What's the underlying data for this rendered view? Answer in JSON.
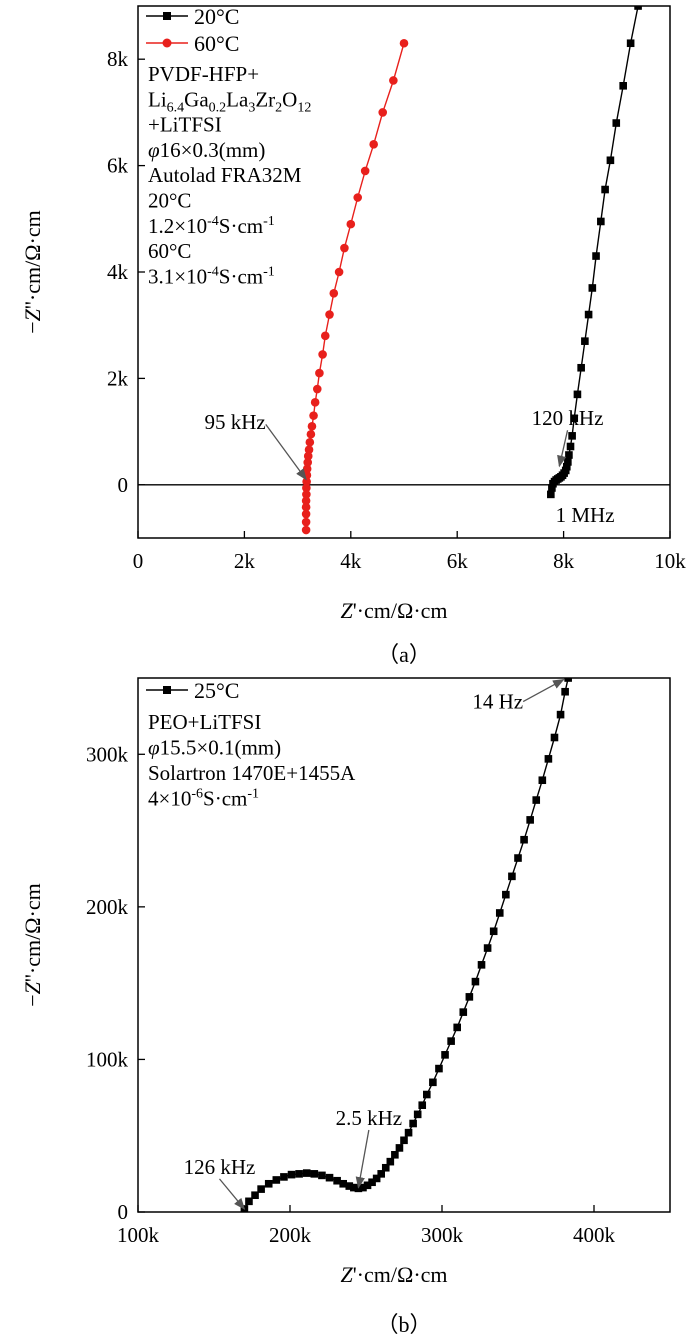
{
  "chart_data": [
    {
      "type": "scatter",
      "panel_label": "（a）",
      "xlabel": "Z'·cm/Ω·cm",
      "ylabel": "−Z''·cm/Ω·cm",
      "xlim": [
        0,
        10000
      ],
      "ylim": [
        -1000,
        9000
      ],
      "x_ticks": [
        0,
        2000,
        4000,
        6000,
        8000,
        10000
      ],
      "x_tick_labels": [
        "0",
        "2k",
        "4k",
        "6k",
        "8k",
        "10k"
      ],
      "y_ticks": [
        0,
        2000,
        4000,
        6000,
        8000
      ],
      "y_tick_labels": [
        "0",
        "2k",
        "4k",
        "6k",
        "8k"
      ],
      "zero_line": true,
      "legend_position": "top-left",
      "series": [
        {
          "name": "20°C",
          "color": "#000000",
          "marker": "square",
          "points": [
            [
              7760,
              -180
            ],
            [
              7780,
              -60
            ],
            [
              7800,
              20
            ],
            [
              7830,
              60
            ],
            [
              7860,
              90
            ],
            [
              7890,
              110
            ],
            [
              7920,
              130
            ],
            [
              7950,
              150
            ],
            [
              7980,
              180
            ],
            [
              8010,
              220
            ],
            [
              8040,
              270
            ],
            [
              8060,
              340
            ],
            [
              8080,
              430
            ],
            [
              8100,
              560
            ],
            [
              8130,
              720
            ],
            [
              8160,
              920
            ],
            [
              8200,
              1250
            ],
            [
              8260,
              1700
            ],
            [
              8330,
              2200
            ],
            [
              8400,
              2700
            ],
            [
              8470,
              3200
            ],
            [
              8540,
              3700
            ],
            [
              8610,
              4300
            ],
            [
              8700,
              4950
            ],
            [
              8780,
              5550
            ],
            [
              8880,
              6100
            ],
            [
              8990,
              6800
            ],
            [
              9120,
              7500
            ],
            [
              9260,
              8300
            ],
            [
              9400,
              9000
            ]
          ]
        },
        {
          "name": "60°C",
          "color": "#e8201c",
          "marker": "circle",
          "points": [
            [
              3160,
              -850
            ],
            [
              3160,
              -700
            ],
            [
              3160,
              -550
            ],
            [
              3160,
              -420
            ],
            [
              3160,
              -300
            ],
            [
              3165,
              -180
            ],
            [
              3165,
              -60
            ],
            [
              3170,
              60
            ],
            [
              3175,
              180
            ],
            [
              3180,
              300
            ],
            [
              3190,
              420
            ],
            [
              3200,
              540
            ],
            [
              3215,
              660
            ],
            [
              3230,
              800
            ],
            [
              3250,
              950
            ],
            [
              3270,
              1100
            ],
            [
              3300,
              1300
            ],
            [
              3330,
              1550
            ],
            [
              3370,
              1800
            ],
            [
              3410,
              2100
            ],
            [
              3470,
              2450
            ],
            [
              3520,
              2800
            ],
            [
              3600,
              3200
            ],
            [
              3680,
              3600
            ],
            [
              3780,
              4000
            ],
            [
              3880,
              4450
            ],
            [
              4000,
              4900
            ],
            [
              4130,
              5400
            ],
            [
              4270,
              5900
            ],
            [
              4430,
              6400
            ],
            [
              4600,
              7000
            ],
            [
              4800,
              7600
            ],
            [
              5000,
              8300
            ]
          ]
        }
      ],
      "info_lines": [
        {
          "main": "PVDF-HFP+"
        },
        {
          "main": "Li6.4Ga0.2La3Zr2O12",
          "parts": [
            {
              "t": "Li"
            },
            {
              "t": "6.4",
              "sub": true
            },
            {
              "t": "Ga"
            },
            {
              "t": "0.2",
              "sub": true
            },
            {
              "t": "La"
            },
            {
              "t": "3",
              "sub": true
            },
            {
              "t": "Zr"
            },
            {
              "t": "2",
              "sub": true
            },
            {
              "t": "O"
            },
            {
              "t": "12",
              "sub": true
            }
          ]
        },
        {
          "main": "+LiTFSI"
        },
        {
          "main": "φ16×0.3(mm)",
          "parts": [
            {
              "t": "φ",
              "italic": true
            },
            {
              "t": "16×0.3(mm)"
            }
          ]
        },
        {
          "main": "Autolad FRA32M"
        },
        {
          "main": "20°C"
        },
        {
          "main": "1.2×10-4S·cm-1",
          "parts": [
            {
              "t": "1.2×10"
            },
            {
              "t": "-4",
              "sup": true
            },
            {
              "t": "S·cm"
            },
            {
              "t": "-1",
              "sup": true
            }
          ]
        },
        {
          "main": "60°C"
        },
        {
          "main": "3.1×10-4S·cm-1",
          "parts": [
            {
              "t": "3.1×10"
            },
            {
              "t": "-4",
              "sup": true
            },
            {
              "t": "S·cm"
            },
            {
              "t": "-1",
              "sup": true
            }
          ]
        }
      ],
      "annotations": [
        {
          "text": "95 kHz",
          "at": [
            3160,
            100
          ],
          "label_at": [
            1250,
            1050
          ],
          "arrow": true
        },
        {
          "text": "120 kHz",
          "at": [
            7920,
            350
          ],
          "label_at": [
            7400,
            1120
          ],
          "arrow": true
        },
        {
          "text": "1 MHz",
          "label_at": [
            7850,
            -700
          ],
          "arrow": false
        }
      ]
    },
    {
      "type": "scatter",
      "panel_label": "（b）",
      "xlabel": "Z'·cm/Ω·cm",
      "ylabel": "−Z''·cm/Ω·cm",
      "xlim": [
        100000,
        450000
      ],
      "ylim": [
        0,
        350000
      ],
      "x_ticks": [
        100000,
        200000,
        300000,
        400000
      ],
      "x_tick_labels": [
        "100k",
        "200k",
        "300k",
        "400k"
      ],
      "y_ticks": [
        0,
        100000,
        200000,
        300000
      ],
      "y_tick_labels": [
        "0",
        "100k",
        "200k",
        "300k"
      ],
      "zero_line": false,
      "legend_position": "top-left",
      "series": [
        {
          "name": "25°C",
          "color": "#000000",
          "marker": "square",
          "points": [
            [
              170000,
              2000
            ],
            [
              173000,
              7000
            ],
            [
              177000,
              11000
            ],
            [
              181000,
              15000
            ],
            [
              186000,
              18500
            ],
            [
              191000,
              21000
            ],
            [
              196000,
              23000
            ],
            [
              201000,
              24500
            ],
            [
              206000,
              25000
            ],
            [
              211000,
              25500
            ],
            [
              216000,
              25000
            ],
            [
              221000,
              24000
            ],
            [
              226000,
              22500
            ],
            [
              231000,
              20500
            ],
            [
              235000,
              18500
            ],
            [
              239000,
              17000
            ],
            [
              242000,
              16000
            ],
            [
              245000,
              15500
            ],
            [
              248000,
              16000
            ],
            [
              251000,
              17500
            ],
            [
              254000,
              19500
            ],
            [
              257000,
              22000
            ],
            [
              260000,
              25000
            ],
            [
              263000,
              29000
            ],
            [
              266000,
              33000
            ],
            [
              269000,
              37500
            ],
            [
              272000,
              42000
            ],
            [
              275000,
              47000
            ],
            [
              278000,
              52000
            ],
            [
              281000,
              58000
            ],
            [
              284000,
              64000
            ],
            [
              287000,
              70000
            ],
            [
              290000,
              77000
            ],
            [
              294000,
              85000
            ],
            [
              298000,
              94000
            ],
            [
              302000,
              103000
            ],
            [
              306000,
              112000
            ],
            [
              310000,
              121000
            ],
            [
              314000,
              131000
            ],
            [
              318000,
              141000
            ],
            [
              322000,
              151000
            ],
            [
              326000,
              162000
            ],
            [
              330000,
              173000
            ],
            [
              334000,
              184000
            ],
            [
              338000,
              196000
            ],
            [
              342000,
              208000
            ],
            [
              346000,
              220000
            ],
            [
              350000,
              232000
            ],
            [
              354000,
              244000
            ],
            [
              358000,
              257000
            ],
            [
              362000,
              270000
            ],
            [
              366000,
              283000
            ],
            [
              370000,
              297000
            ],
            [
              374000,
              311000
            ],
            [
              378000,
              326000
            ],
            [
              381000,
              341000
            ],
            [
              383000,
              350000
            ]
          ]
        }
      ],
      "info_lines": [
        {
          "main": "PEO+LiTFSI"
        },
        {
          "main": "φ15.5×0.1(mm)",
          "parts": [
            {
              "t": "φ",
              "italic": true
            },
            {
              "t": "15.5×0.1(mm)"
            }
          ]
        },
        {
          "main": "Solartron 1470E+1455A"
        },
        {
          "main": "4×10-6S·cm-1",
          "parts": [
            {
              "t": "4×10"
            },
            {
              "t": "-6",
              "sup": true
            },
            {
              "t": "S·cm"
            },
            {
              "t": "-1",
              "sup": true
            }
          ]
        }
      ],
      "annotations": [
        {
          "text": "14 Hz",
          "at": [
            380000,
            349000
          ],
          "label_at": [
            320000,
            330000
          ],
          "arrow": true
        },
        {
          "text": "2.5 kHz",
          "at": [
            245000,
            16000
          ],
          "label_at": [
            230000,
            57000
          ],
          "arrow": true
        },
        {
          "text": "126 kHz",
          "at": [
            170000,
            2000
          ],
          "label_at": [
            130000,
            25000
          ],
          "arrow": true
        }
      ]
    }
  ]
}
